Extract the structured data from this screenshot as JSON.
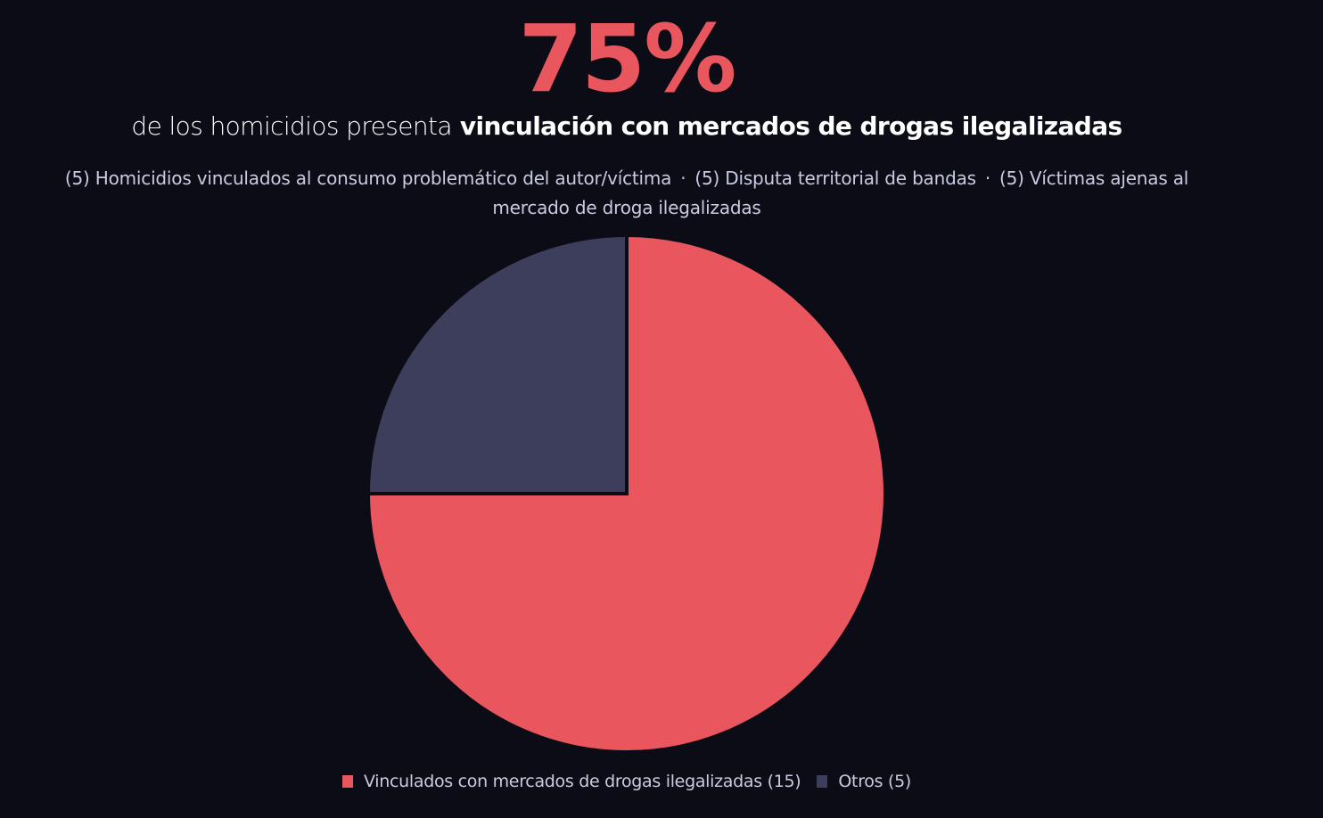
{
  "header": {
    "big_stat": "75%",
    "subtitle_prefix": "de los homicidios presenta",
    "subtitle_emphasis": "vinculación con mercados de drogas ilegalizadas"
  },
  "breakdown": {
    "items": [
      "(5) Homicidios vinculados al consumo problemático del autor/víctima",
      "(5) Disputa territorial de bandas",
      "(5) Víctimas ajenas al mercado de droga ilegalizadas"
    ],
    "separator": "·"
  },
  "chart_data": {
    "type": "pie",
    "slices": [
      {
        "label": "Vinculados con mercados de drogas ilegalizadas (15)",
        "value": 15,
        "color": "#e9565e"
      },
      {
        "label": "Otros (5)",
        "value": 5,
        "color": "#3d3e5c"
      }
    ],
    "start_angle": "12 o'clock",
    "direction": "clockwise",
    "legend": "bottom"
  },
  "colors": {
    "background": "#0c0c16",
    "accent": "#e9565e",
    "secondary": "#3d3e5c",
    "text_muted": "#c9cbe0"
  }
}
